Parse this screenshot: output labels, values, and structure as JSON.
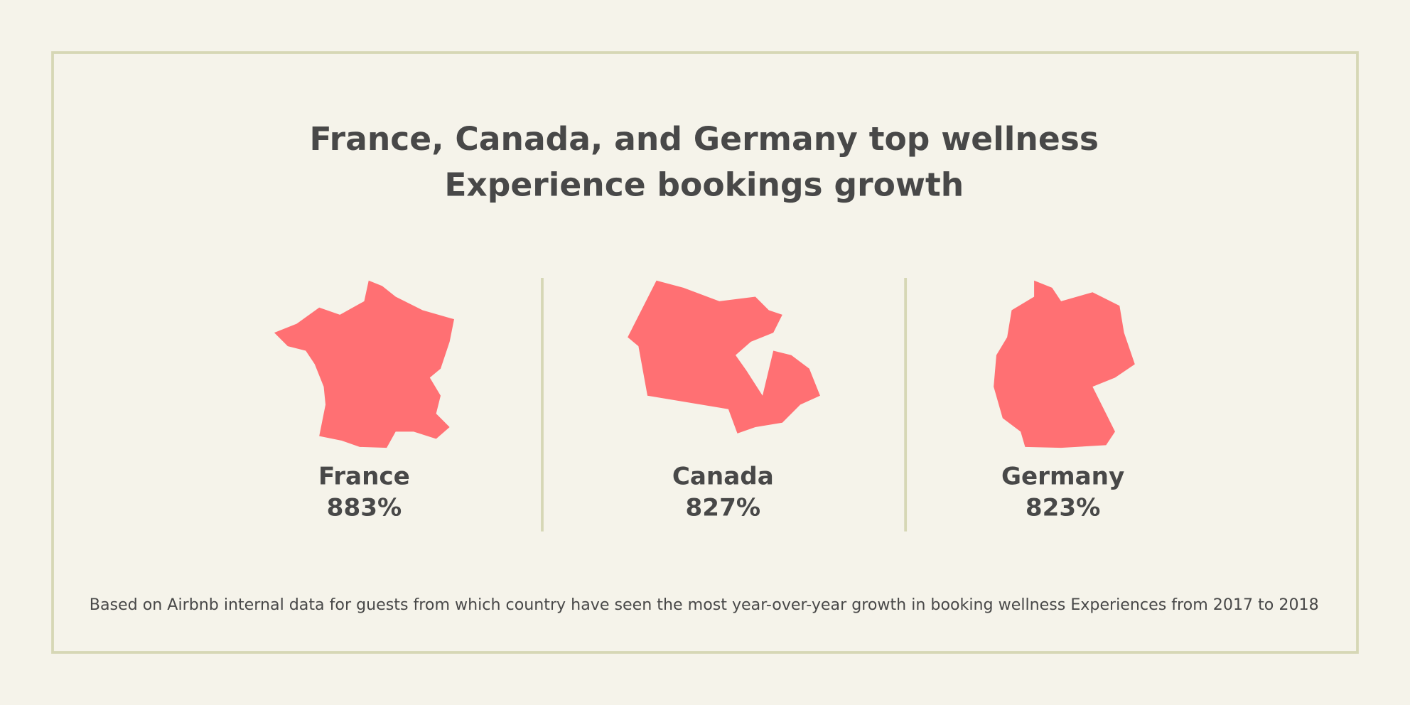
{
  "title": {
    "line1": "France, Canada, and Germany top wellness",
    "line2": "Experience bookings growth"
  },
  "countries": [
    {
      "name": "France",
      "growth": "883%"
    },
    {
      "name": "Canada",
      "growth": "827%"
    },
    {
      "name": "Germany",
      "growth": "823%"
    }
  ],
  "footnote": "Based on Airbnb internal data for guests from which country have seen the most year-over-year growth in booking wellness Experiences from 2017 to 2018"
}
